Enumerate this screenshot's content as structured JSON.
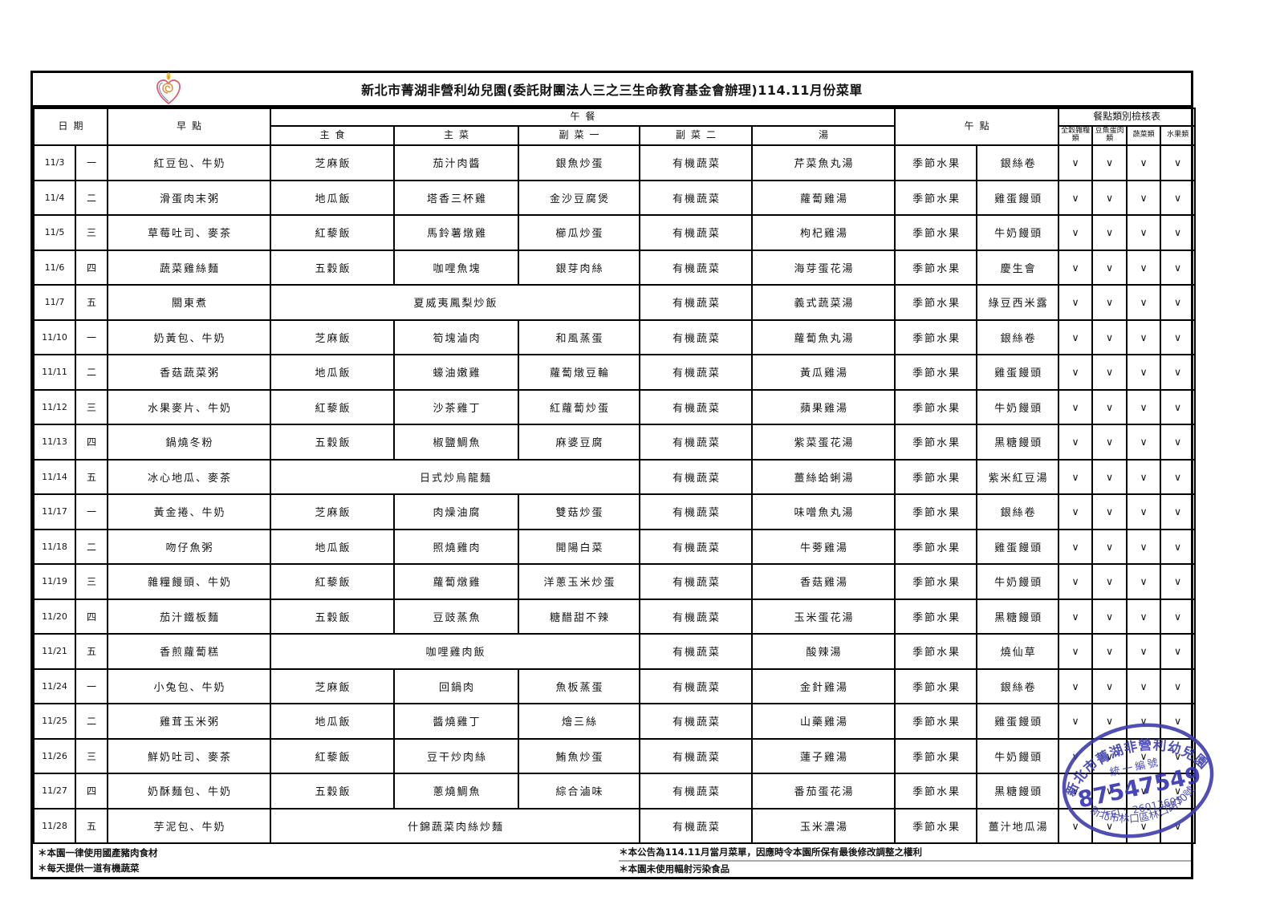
{
  "title": "新北市菁湖非營利幼兒園(委託財團法人三之三生命教育基金會辦理)114.11月份菜單",
  "logo_name": "heart-flame-logo",
  "header": {
    "date": "日期",
    "breakfast": "早點",
    "lunch": "午餐",
    "lunch_cols": [
      "主食",
      "主菜",
      "副菜一",
      "副菜二",
      "湯"
    ],
    "afternoon": "午點",
    "checklist": "餐點類別檢核表",
    "checklist_cols": [
      "全穀雜糧類",
      "豆魚蛋肉類",
      "蔬菜類",
      "水果類"
    ]
  },
  "check_mark": "∨",
  "rows": [
    {
      "date": "11/3",
      "weekday": "一",
      "breakfast": "紅豆包、牛奶",
      "staple": "芝麻飯",
      "main": "茄汁肉醬",
      "side1": "銀魚炒蛋",
      "side2": "有機蔬菜",
      "soup": "芹菜魚丸湯",
      "snack1": "季節水果",
      "snack2": "銀絲卷",
      "checks": [
        "∨",
        "∨",
        "∨",
        "∨"
      ]
    },
    {
      "date": "11/4",
      "weekday": "二",
      "breakfast": "滑蛋肉末粥",
      "staple": "地瓜飯",
      "main": "塔香三杯雞",
      "side1": "金沙豆腐煲",
      "side2": "有機蔬菜",
      "soup": "蘿蔔雞湯",
      "snack1": "季節水果",
      "snack2": "雞蛋饅頭",
      "checks": [
        "∨",
        "∨",
        "∨",
        "∨"
      ]
    },
    {
      "date": "11/5",
      "weekday": "三",
      "breakfast": "草莓吐司、麥茶",
      "staple": "紅藜飯",
      "main": "馬鈴薯燉雞",
      "side1": "櫛瓜炒蛋",
      "side2": "有機蔬菜",
      "soup": "枸杞雞湯",
      "snack1": "季節水果",
      "snack2": "牛奶饅頭",
      "checks": [
        "∨",
        "∨",
        "∨",
        "∨"
      ]
    },
    {
      "date": "11/6",
      "weekday": "四",
      "breakfast": "蔬菜雞絲麵",
      "staple": "五穀飯",
      "main": "咖哩魚塊",
      "side1": "銀芽肉絲",
      "side2": "有機蔬菜",
      "soup": "海芽蛋花湯",
      "snack1": "季節水果",
      "snack2": "慶生會",
      "checks": [
        "∨",
        "∨",
        "∨",
        "∨"
      ]
    },
    {
      "date": "11/7",
      "weekday": "五",
      "breakfast": "關東煮",
      "lunch_merged": "夏威夷鳳梨炒飯",
      "side2": "有機蔬菜",
      "soup": "義式蔬菜湯",
      "snack1": "季節水果",
      "snack2": "綠豆西米露",
      "checks": [
        "∨",
        "∨",
        "∨",
        "∨"
      ]
    },
    {
      "date": "11/10",
      "weekday": "一",
      "breakfast": "奶黃包、牛奶",
      "staple": "芝麻飯",
      "main": "筍塊滷肉",
      "side1": "和風蒸蛋",
      "side2": "有機蔬菜",
      "soup": "蘿蔔魚丸湯",
      "snack1": "季節水果",
      "snack2": "銀絲卷",
      "checks": [
        "∨",
        "∨",
        "∨",
        "∨"
      ]
    },
    {
      "date": "11/11",
      "weekday": "二",
      "breakfast": "香菇蔬菜粥",
      "staple": "地瓜飯",
      "main": "蠔油嫩雞",
      "side1": "蘿蔔燉豆輪",
      "side2": "有機蔬菜",
      "soup": "黃瓜雞湯",
      "snack1": "季節水果",
      "snack2": "雞蛋饅頭",
      "checks": [
        "∨",
        "∨",
        "∨",
        "∨"
      ]
    },
    {
      "date": "11/12",
      "weekday": "三",
      "breakfast": "水果麥片、牛奶",
      "staple": "紅藜飯",
      "main": "沙茶雞丁",
      "side1": "紅蘿蔔炒蛋",
      "side2": "有機蔬菜",
      "soup": "蘋果雞湯",
      "snack1": "季節水果",
      "snack2": "牛奶饅頭",
      "checks": [
        "∨",
        "∨",
        "∨",
        "∨"
      ]
    },
    {
      "date": "11/13",
      "weekday": "四",
      "breakfast": "鍋燒冬粉",
      "staple": "五穀飯",
      "main": "椒鹽鯛魚",
      "side1": "麻婆豆腐",
      "side2": "有機蔬菜",
      "soup": "紫菜蛋花湯",
      "snack1": "季節水果",
      "snack2": "黑糖饅頭",
      "checks": [
        "∨",
        "∨",
        "∨",
        "∨"
      ]
    },
    {
      "date": "11/14",
      "weekday": "五",
      "breakfast": "冰心地瓜、麥茶",
      "lunch_merged": "日式炒烏龍麵",
      "side2": "有機蔬菜",
      "soup": "薑絲蛤蜊湯",
      "snack1": "季節水果",
      "snack2": "紫米紅豆湯",
      "checks": [
        "∨",
        "∨",
        "∨",
        "∨"
      ]
    },
    {
      "date": "11/17",
      "weekday": "一",
      "breakfast": "黃金捲、牛奶",
      "staple": "芝麻飯",
      "main": "肉燥油腐",
      "side1": "雙菇炒蛋",
      "side2": "有機蔬菜",
      "soup": "味噌魚丸湯",
      "snack1": "季節水果",
      "snack2": "銀絲卷",
      "checks": [
        "∨",
        "∨",
        "∨",
        "∨"
      ]
    },
    {
      "date": "11/18",
      "weekday": "二",
      "breakfast": "吻仔魚粥",
      "staple": "地瓜飯",
      "main": "照燒雞肉",
      "side1": "開陽白菜",
      "side2": "有機蔬菜",
      "soup": "牛蒡雞湯",
      "snack1": "季節水果",
      "snack2": "雞蛋饅頭",
      "checks": [
        "∨",
        "∨",
        "∨",
        "∨"
      ]
    },
    {
      "date": "11/19",
      "weekday": "三",
      "breakfast": "雜糧饅頭、牛奶",
      "staple": "紅藜飯",
      "main": "蘿蔔燉雞",
      "side1": "洋蔥玉米炒蛋",
      "side2": "有機蔬菜",
      "soup": "香菇雞湯",
      "snack1": "季節水果",
      "snack2": "牛奶饅頭",
      "checks": [
        "∨",
        "∨",
        "∨",
        "∨"
      ]
    },
    {
      "date": "11/20",
      "weekday": "四",
      "breakfast": "茄汁鐵板麵",
      "staple": "五穀飯",
      "main": "豆豉蒸魚",
      "side1": "糖醋甜不辣",
      "side2": "有機蔬菜",
      "soup": "玉米蛋花湯",
      "snack1": "季節水果",
      "snack2": "黑糖饅頭",
      "checks": [
        "∨",
        "∨",
        "∨",
        "∨"
      ]
    },
    {
      "date": "11/21",
      "weekday": "五",
      "breakfast": "香煎蘿蔔糕",
      "lunch_merged": "咖哩雞肉飯",
      "side2": "有機蔬菜",
      "soup": "酸辣湯",
      "snack1": "季節水果",
      "snack2": "燒仙草",
      "checks": [
        "∨",
        "∨",
        "∨",
        "∨"
      ]
    },
    {
      "date": "11/24",
      "weekday": "一",
      "breakfast": "小兔包、牛奶",
      "staple": "芝麻飯",
      "main": "回鍋肉",
      "side1": "魚板蒸蛋",
      "side2": "有機蔬菜",
      "soup": "金針雞湯",
      "snack1": "季節水果",
      "snack2": "銀絲卷",
      "checks": [
        "∨",
        "∨",
        "∨",
        "∨"
      ]
    },
    {
      "date": "11/25",
      "weekday": "二",
      "breakfast": "雞茸玉米粥",
      "staple": "地瓜飯",
      "main": "醬燒雞丁",
      "side1": "燴三絲",
      "side2": "有機蔬菜",
      "soup": "山藥雞湯",
      "snack1": "季節水果",
      "snack2": "雞蛋饅頭",
      "checks": [
        "∨",
        "∨",
        "∨",
        "∨"
      ]
    },
    {
      "date": "11/26",
      "weekday": "三",
      "breakfast": "鮮奶吐司、麥茶",
      "staple": "紅藜飯",
      "main": "豆干炒肉絲",
      "side1": "鮪魚炒蛋",
      "side2": "有機蔬菜",
      "soup": "蓮子雞湯",
      "snack1": "季節水果",
      "snack2": "牛奶饅頭",
      "checks": [
        "∨",
        "∨",
        "∨",
        "∨"
      ]
    },
    {
      "date": "11/27",
      "weekday": "四",
      "breakfast": "奶酥麵包、牛奶",
      "staple": "五穀飯",
      "main": "蔥燒鯛魚",
      "side1": "綜合滷味",
      "side2": "有機蔬菜",
      "soup": "番茄蛋花湯",
      "snack1": "季節水果",
      "snack2": "黑糖饅頭",
      "checks": [
        "∨",
        "∨",
        "∨",
        "∨"
      ]
    },
    {
      "date": "11/28",
      "weekday": "五",
      "breakfast": "芋泥包、牛奶",
      "lunch_merged": "什錦蔬菜肉絲炒麵",
      "side2": "有機蔬菜",
      "soup": "玉米濃湯",
      "snack1": "季節水果",
      "snack2": "薑汁地瓜湯",
      "checks": [
        "∨",
        "∨",
        "∨",
        "∨"
      ]
    }
  ],
  "notes": {
    "left1": "＊本園一律使用國產豬肉食材",
    "left2": "＊每天提供一道有機蔬菜",
    "right1": "＊本公告為114.11月當月菜單，因應時令本園所保有最後修改調整之權利",
    "right2": "＊本園未使用輻射污染食品"
  },
  "stamp": {
    "arc_top": "新北市菁湖非營利幼兒園",
    "line1": "統一編號",
    "number": "87547549",
    "tel": "TEL：26013695",
    "arc_bottom": "新北市林口區林口路70號",
    "color": "#3c3cae"
  }
}
